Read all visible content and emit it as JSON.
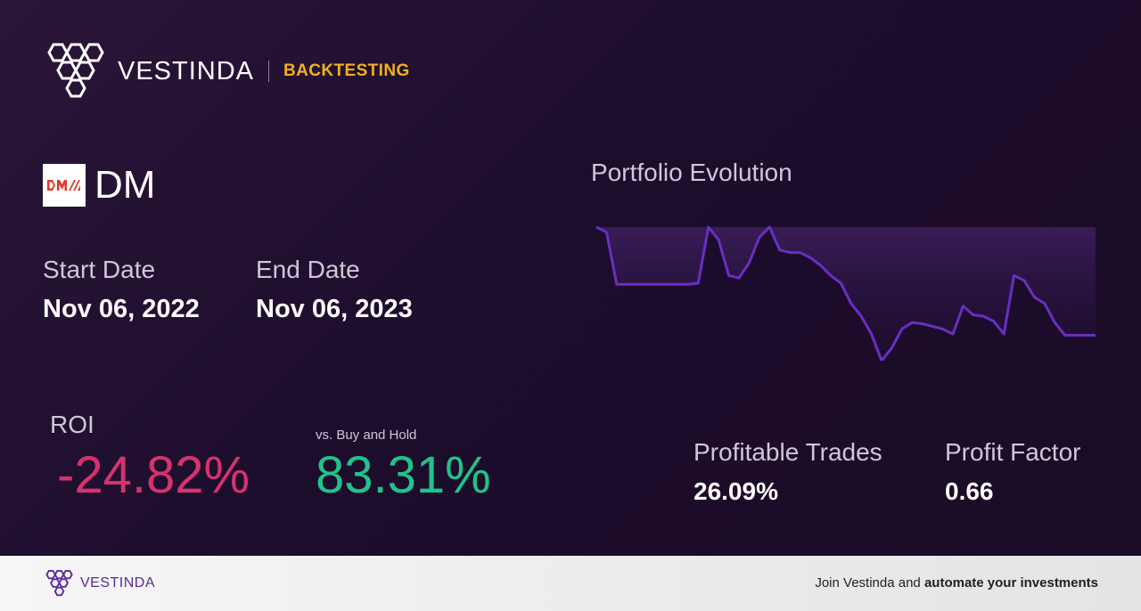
{
  "header": {
    "brand": "VESTINDA",
    "section": "BACKTESTING"
  },
  "ticker": {
    "logo_icon": "dm-logo-icon",
    "symbol": "DM"
  },
  "dates": {
    "start_label": "Start Date",
    "start_value": "Nov 06, 2022",
    "end_label": "End Date",
    "end_value": "Nov 06, 2023"
  },
  "roi": {
    "label": "ROI",
    "value": "-24.82%",
    "vs_label": "vs. Buy and Hold",
    "vs_value": "83.31%"
  },
  "chart": {
    "title": "Portfolio Evolution"
  },
  "chart_data": {
    "type": "area",
    "title": "Portfolio Evolution",
    "xlabel": "",
    "ylabel": "",
    "grid": false,
    "series": [
      {
        "values": [
          1.0,
          0.96,
          0.55,
          0.55,
          0.55,
          0.55,
          0.55,
          0.55,
          0.55,
          0.55,
          0.56,
          1.0,
          0.9,
          0.62,
          0.6,
          0.72,
          0.92,
          1.0,
          0.82,
          0.8,
          0.8,
          0.76,
          0.7,
          0.62,
          0.56,
          0.4,
          0.3,
          0.16,
          -0.05,
          0.05,
          0.2,
          0.25,
          0.24,
          0.22,
          0.2,
          0.16,
          0.38,
          0.31,
          0.3,
          0.26,
          0.16,
          0.62,
          0.58,
          0.45,
          0.4,
          0.25,
          0.15,
          0.15,
          0.15,
          0.15
        ]
      }
    ]
  },
  "stats": {
    "profitable_label": "Profitable Trades",
    "profitable_value": "26.09%",
    "factor_label": "Profit Factor",
    "factor_value": "0.66"
  },
  "colors": {
    "accent": "#f2b01e",
    "negative": "#d6336c",
    "positive": "#20c38a",
    "line": "#6a2ec2"
  },
  "footer": {
    "brand": "VESTINDA",
    "cta_prefix": "Join Vestinda and ",
    "cta_bold": "automate your investments"
  }
}
